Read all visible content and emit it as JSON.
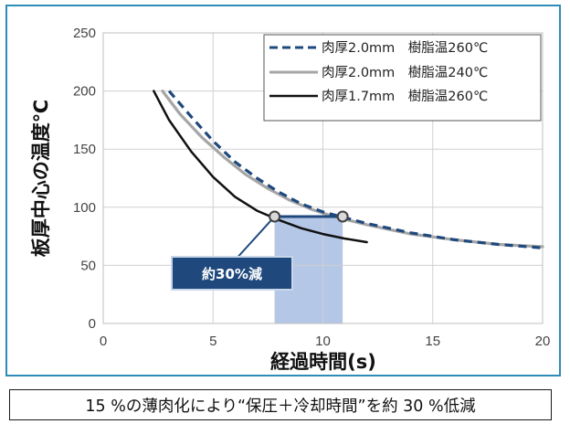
{
  "chart_data": {
    "type": "line",
    "xlabel": "経過時間(s)",
    "ylabel": "板厚中心の温度℃",
    "xlim": [
      0,
      20
    ],
    "ylim": [
      0,
      250
    ],
    "xticks": [
      "0",
      "5",
      "10",
      "15",
      "20"
    ],
    "yticks": [
      "0",
      "50",
      "100",
      "150",
      "200",
      "250"
    ],
    "grid": true,
    "legend_position": "top-right",
    "series": [
      {
        "name": "肉厚2.0mm　樹脂温260℃",
        "color": "#1f497d",
        "style": "dashed",
        "x": [
          3.0,
          4.0,
          5.0,
          6.0,
          7.0,
          8.0,
          9.0,
          10.0,
          11.0,
          12.0,
          14.0,
          16.0,
          18.0,
          20.0
        ],
        "y": [
          200,
          178,
          157,
          139,
          125,
          113,
          103,
          96,
          91,
          86,
          78,
          72,
          68,
          65
        ]
      },
      {
        "name": "肉厚2.0mm　樹脂温240℃",
        "color": "#a6a6a6",
        "style": "solid",
        "x": [
          2.7,
          3.5,
          4.5,
          5.5,
          6.5,
          7.5,
          8.5,
          9.5,
          10.5,
          12.0,
          14.0,
          16.0,
          18.0,
          20.0
        ],
        "y": [
          200,
          180,
          160,
          143,
          128,
          116,
          106,
          98,
          92,
          85,
          77,
          72,
          68,
          66
        ]
      },
      {
        "name": "肉厚1.7mm　樹脂温260℃",
        "color": "#111111",
        "style": "solid",
        "x": [
          2.3,
          3.0,
          4.0,
          5.0,
          6.0,
          7.0,
          8.0,
          9.0,
          10.0,
          11.0,
          12.0
        ],
        "y": [
          200,
          175,
          148,
          126,
          109,
          97,
          89,
          82,
          77,
          73,
          70
        ]
      }
    ],
    "markers": [
      {
        "x": 7.8,
        "y": 92
      },
      {
        "x": 10.9,
        "y": 92
      }
    ],
    "shaded_band": {
      "x0": 7.8,
      "x1": 10.9,
      "color": "#b4c7e7"
    },
    "annotation": {
      "text": "約30%減",
      "fill": "#1f497d"
    }
  },
  "caption": "15 %の薄肉化により“保圧＋冷却時間”を約 30 %低減"
}
